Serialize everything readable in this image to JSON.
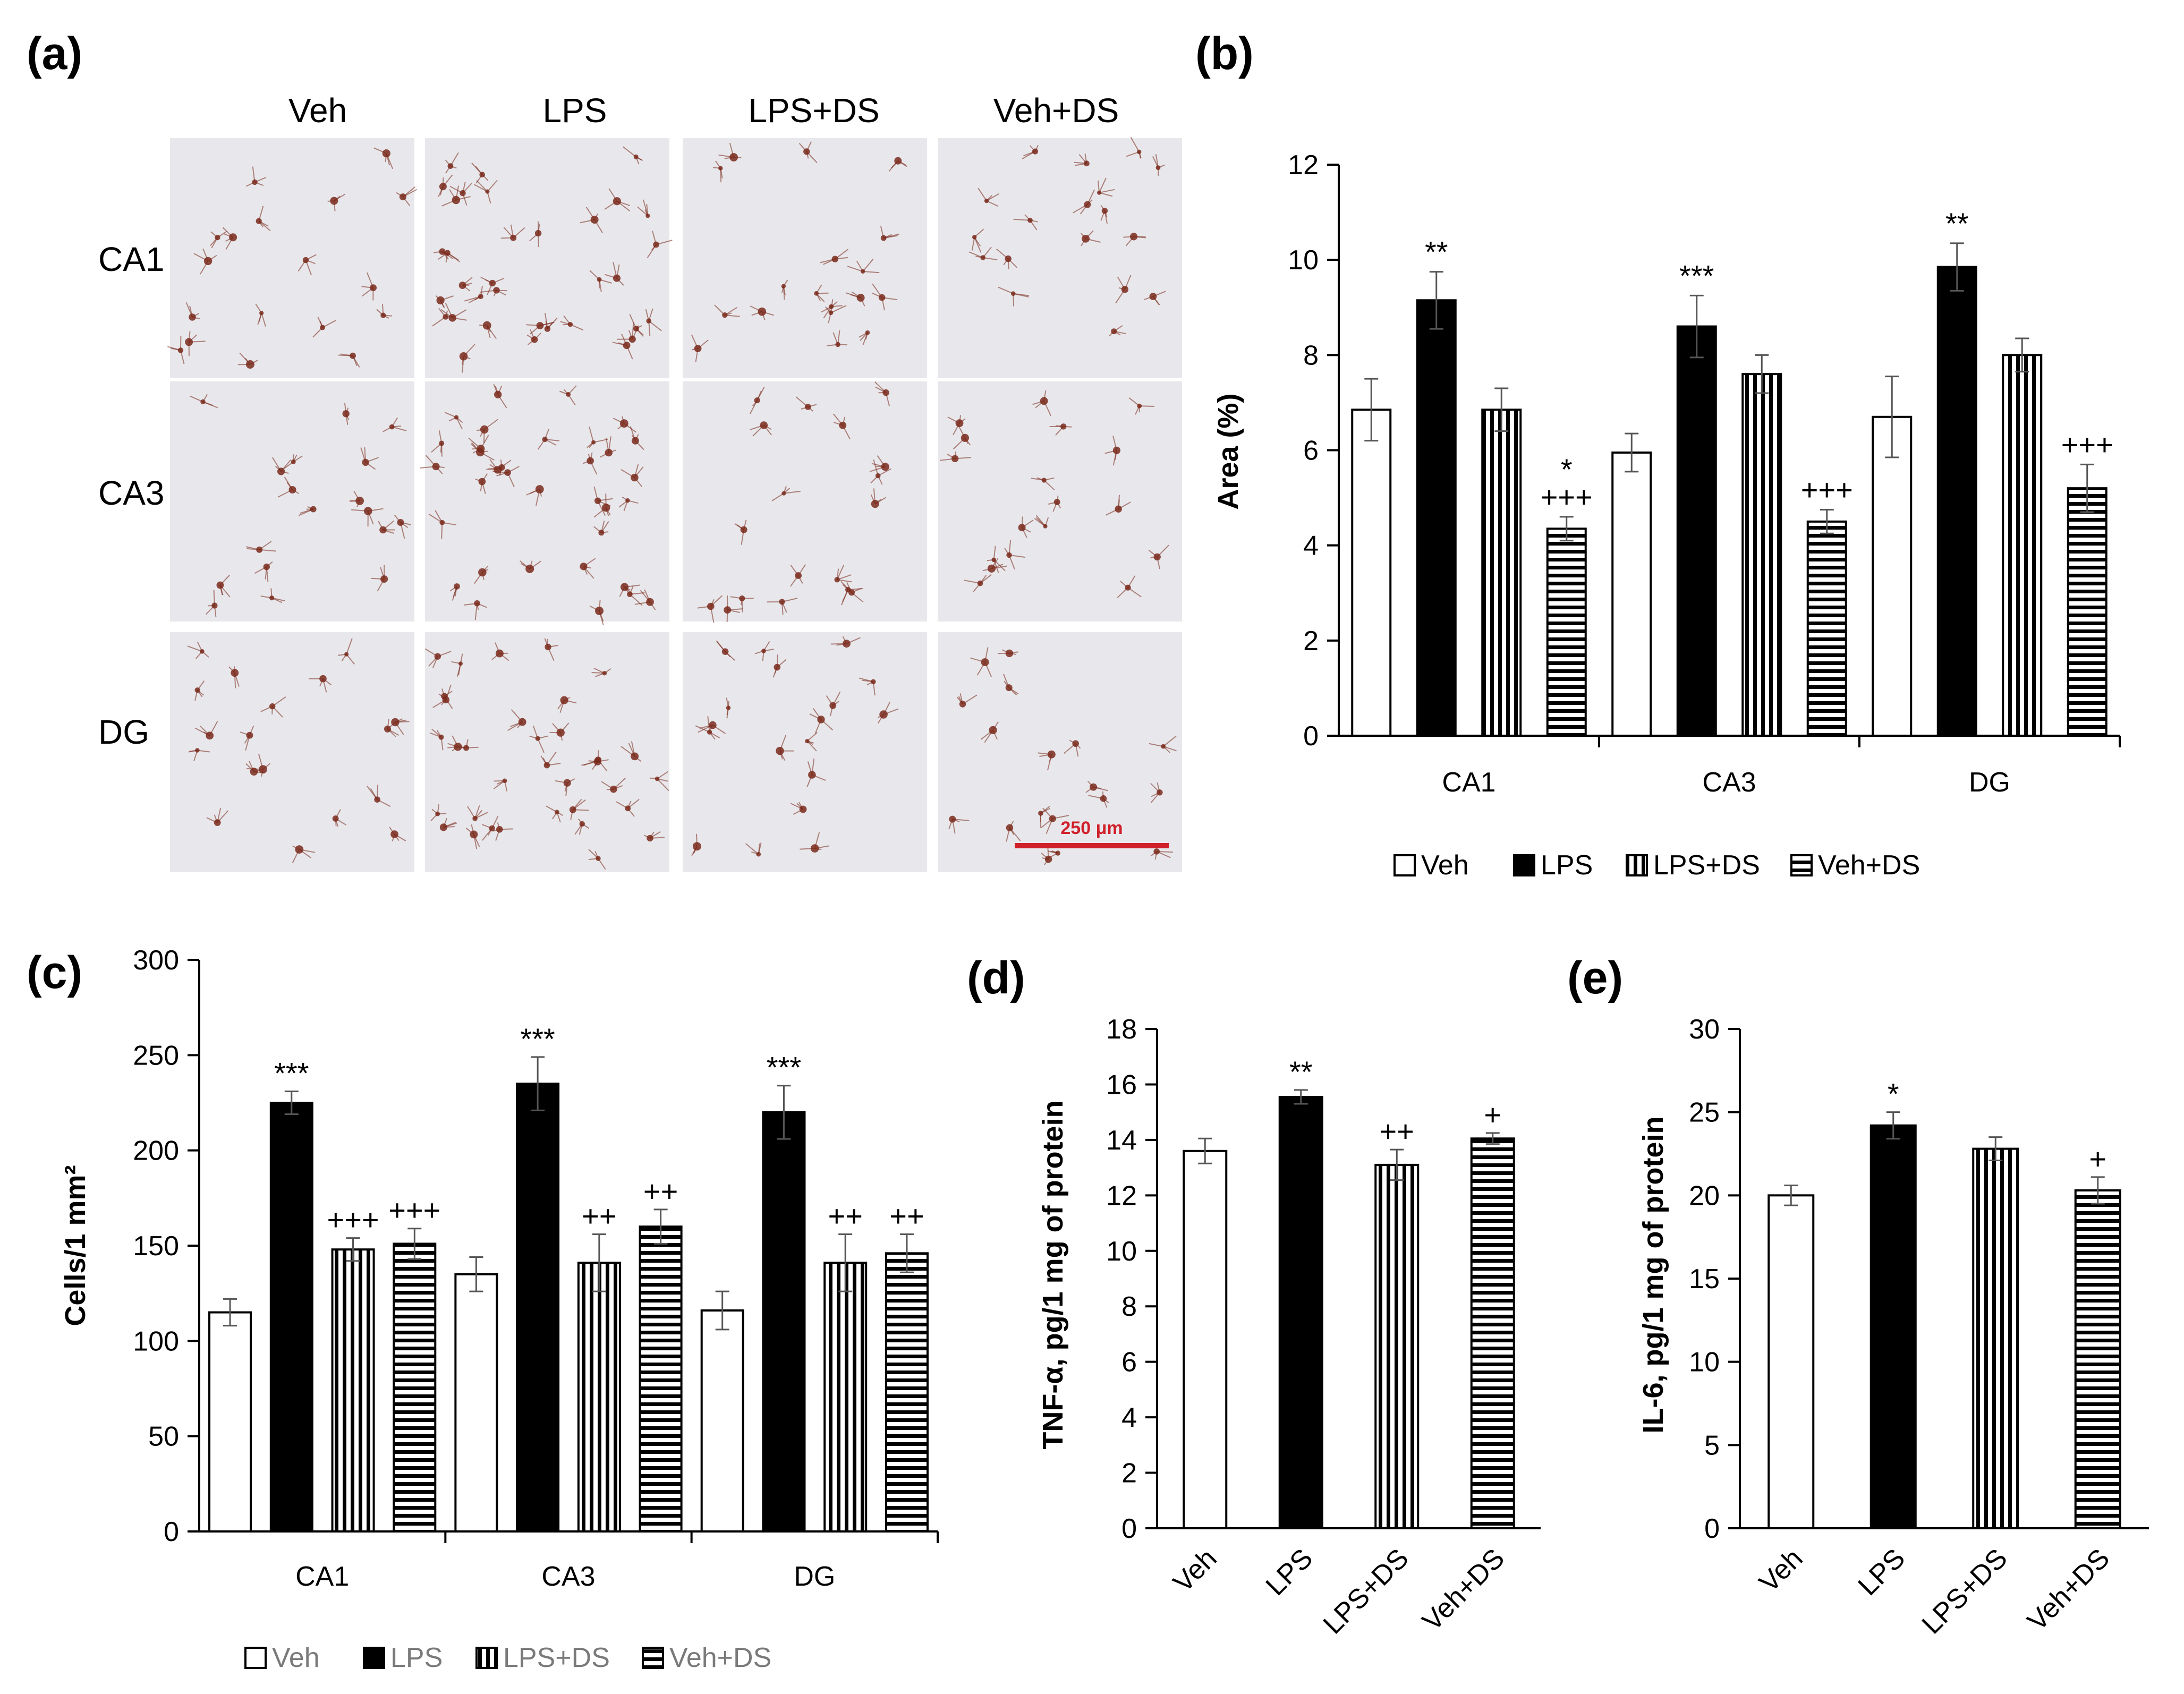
{
  "panels": {
    "a": {
      "letter": "(a)",
      "columns": [
        "Veh",
        "LPS",
        "LPS+DS",
        "Veh+DS"
      ],
      "rows": [
        "CA1",
        "CA3",
        "DG"
      ],
      "scale_bar_label": "250 μm",
      "colors": {
        "background": "#e8e8ec",
        "stain": "#7a2a1c",
        "scale_bar": "#d0202a"
      }
    }
  },
  "legend_labels": [
    "Veh",
    "LPS",
    "LPS+DS",
    "Veh+DS"
  ],
  "chart_data": [
    {
      "id": "b",
      "letter": "(b)",
      "type": "bar",
      "ylabel": "Area (%)",
      "ylim": [
        0,
        12
      ],
      "yticks": [
        0,
        2,
        4,
        6,
        8,
        10,
        12
      ],
      "categories": [
        "CA1",
        "CA3",
        "DG"
      ],
      "series": [
        {
          "name": "Veh",
          "style": "white",
          "values": [
            6.85,
            5.95,
            6.7
          ],
          "errors": [
            0.65,
            0.4,
            0.85
          ]
        },
        {
          "name": "LPS",
          "style": "black",
          "values": [
            9.15,
            8.6,
            9.85
          ],
          "errors": [
            0.6,
            0.65,
            0.5
          ]
        },
        {
          "name": "LPS+DS",
          "style": "vstripe",
          "values": [
            6.85,
            7.6,
            8.0
          ],
          "errors": [
            0.45,
            0.4,
            0.35
          ]
        },
        {
          "name": "Veh+DS",
          "style": "hstripe",
          "values": [
            4.35,
            4.5,
            5.2
          ],
          "errors": [
            0.25,
            0.25,
            0.5
          ]
        }
      ],
      "annotations": [
        {
          "category": 0,
          "series": 1,
          "text": "**"
        },
        {
          "category": 0,
          "series": 3,
          "text": "*"
        },
        {
          "category": 0,
          "series": 3,
          "text": "+++"
        },
        {
          "category": 1,
          "series": 1,
          "text": "***"
        },
        {
          "category": 1,
          "series": 3,
          "text": "+++"
        },
        {
          "category": 2,
          "series": 1,
          "text": "**"
        },
        {
          "category": 2,
          "series": 3,
          "text": "+++"
        }
      ]
    },
    {
      "id": "c",
      "letter": "(c)",
      "type": "bar",
      "ylabel": "Cells/1 mm²",
      "ylim": [
        0,
        300
      ],
      "yticks": [
        0,
        50,
        100,
        150,
        200,
        250,
        300
      ],
      "categories": [
        "CA1",
        "CA3",
        "DG"
      ],
      "series": [
        {
          "name": "Veh",
          "style": "white",
          "values": [
            115,
            135,
            116
          ],
          "errors": [
            7,
            9,
            10
          ]
        },
        {
          "name": "LPS",
          "style": "black",
          "values": [
            225,
            235,
            220
          ],
          "errors": [
            6,
            14,
            14
          ]
        },
        {
          "name": "LPS+DS",
          "style": "vstripe",
          "values": [
            148,
            141,
            141
          ],
          "errors": [
            6,
            15,
            15
          ]
        },
        {
          "name": "Veh+DS",
          "style": "hstripe",
          "values": [
            151,
            160,
            146
          ],
          "errors": [
            8,
            9,
            10
          ]
        }
      ],
      "annotations": [
        {
          "category": 0,
          "series": 1,
          "text": "***"
        },
        {
          "category": 0,
          "series": 2,
          "text": "+++"
        },
        {
          "category": 0,
          "series": 3,
          "text": "+++"
        },
        {
          "category": 1,
          "series": 1,
          "text": "***"
        },
        {
          "category": 1,
          "series": 2,
          "text": "++"
        },
        {
          "category": 1,
          "series": 3,
          "text": "++"
        },
        {
          "category": 2,
          "series": 1,
          "text": "***"
        },
        {
          "category": 2,
          "series": 2,
          "text": "++"
        },
        {
          "category": 2,
          "series": 3,
          "text": "++"
        }
      ]
    },
    {
      "id": "d",
      "letter": "(d)",
      "type": "bar",
      "ylabel": "TNF-α, pg/1 mg of protein",
      "ylim": [
        0,
        18
      ],
      "yticks": [
        0,
        2,
        4,
        6,
        8,
        10,
        12,
        14,
        16,
        18
      ],
      "categories": [
        "Veh",
        "LPS",
        "LPS+DS",
        "Veh+DS"
      ],
      "styles": [
        "white",
        "black",
        "vstripe",
        "hstripe"
      ],
      "values": [
        13.6,
        15.55,
        13.1,
        14.05
      ],
      "errors": [
        0.45,
        0.25,
        0.55,
        0.2
      ],
      "annotations": [
        "",
        "**",
        "++",
        "+"
      ]
    },
    {
      "id": "e",
      "letter": "(e)",
      "type": "bar",
      "ylabel": "IL-6, pg/1 mg of protein",
      "ylim": [
        0,
        30
      ],
      "yticks": [
        0,
        5,
        10,
        15,
        20,
        25,
        30
      ],
      "categories": [
        "Veh",
        "LPS",
        "LPS+DS",
        "Veh+DS"
      ],
      "styles": [
        "white",
        "black",
        "vstripe",
        "hstripe"
      ],
      "values": [
        20.0,
        24.2,
        22.8,
        20.3
      ],
      "errors": [
        0.6,
        0.8,
        0.7,
        0.8
      ],
      "annotations": [
        "",
        "*",
        "",
        "+"
      ]
    }
  ]
}
